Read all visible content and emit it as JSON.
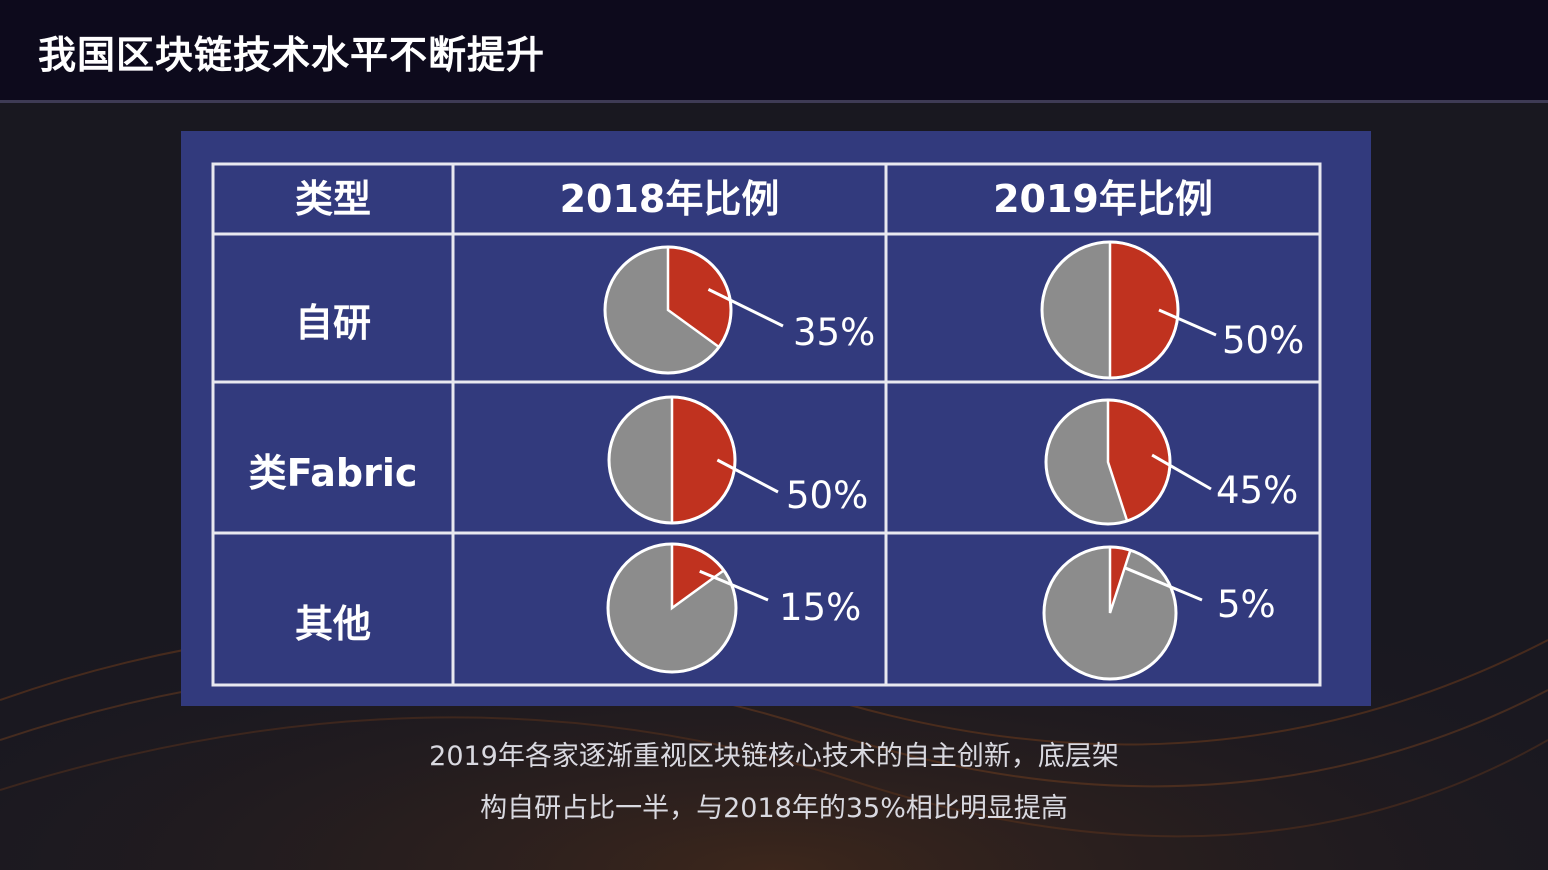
{
  "page": {
    "title": "我国区块链技术水平不断提升",
    "caption_line1": "2019年各家逐渐重视区块链核心技术的自主创新，底层架",
    "caption_line2": "构自研占比一半，与2018年的35%相比明显提高"
  },
  "colors": {
    "slice_highlight": "#c0321f",
    "slice_rest": "#8c8c8c",
    "panel": "#323a7d",
    "grid_line": "#e8e8f0"
  },
  "chart_data": {
    "type": "table",
    "columns": [
      "类型",
      "2018年比例",
      "2019年比例"
    ],
    "rows": [
      {
        "category": "自研",
        "values": [
          35,
          50
        ],
        "labels": [
          "35%",
          "50%"
        ]
      },
      {
        "category": "类Fabric",
        "values": [
          50,
          45
        ],
        "labels": [
          "50%",
          "45%"
        ]
      },
      {
        "category": "其他",
        "values": [
          15,
          5
        ],
        "labels": [
          "15%",
          "5%"
        ]
      }
    ],
    "cell_chart": "pie",
    "value_unit": "%"
  }
}
